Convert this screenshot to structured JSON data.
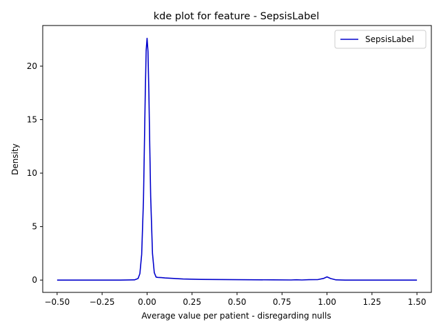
{
  "chart_data": {
    "type": "line",
    "title": "kde plot for feature -  SepsisLabel",
    "xlabel": "Average value per patient - disregarding nulls",
    "ylabel": "Density",
    "xlim": [
      -0.58,
      1.58
    ],
    "ylim": [
      -1.15,
      23.8
    ],
    "xticks": [
      -0.5,
      -0.25,
      0.0,
      0.25,
      0.5,
      0.75,
      1.0,
      1.25,
      1.5
    ],
    "xtick_labels": [
      "−0.50",
      "−0.25",
      "0.00",
      "0.25",
      "0.50",
      "0.75",
      "1.00",
      "1.25",
      "1.50"
    ],
    "yticks": [
      0,
      5,
      10,
      15,
      20
    ],
    "ytick_labels": [
      "0",
      "5",
      "10",
      "15",
      "20"
    ],
    "grid": false,
    "legend_position": "top-right",
    "series": [
      {
        "name": "SepsisLabel",
        "color": "#0000cc",
        "x": [
          -0.5,
          -0.3,
          -0.15,
          -0.07,
          -0.05,
          -0.04,
          -0.03,
          -0.02,
          -0.015,
          -0.01,
          -0.005,
          0.0,
          0.005,
          0.01,
          0.015,
          0.02,
          0.03,
          0.04,
          0.05,
          0.06,
          0.08,
          0.1,
          0.15,
          0.2,
          0.3,
          0.5,
          0.7,
          0.8,
          0.83,
          0.86,
          0.9,
          0.95,
          0.98,
          1.0,
          1.02,
          1.05,
          1.1,
          1.3,
          1.5
        ],
        "y": [
          0.0,
          0.0,
          0.0,
          0.02,
          0.15,
          0.6,
          2.4,
          7.5,
          12.5,
          17.5,
          21.5,
          22.6,
          21.4,
          17.5,
          12.5,
          7.8,
          2.5,
          0.7,
          0.28,
          0.25,
          0.23,
          0.2,
          0.15,
          0.1,
          0.06,
          0.04,
          0.02,
          0.01,
          0.03,
          0.01,
          0.04,
          0.05,
          0.15,
          0.3,
          0.15,
          0.02,
          0.0,
          0.0,
          0.0
        ]
      }
    ]
  }
}
